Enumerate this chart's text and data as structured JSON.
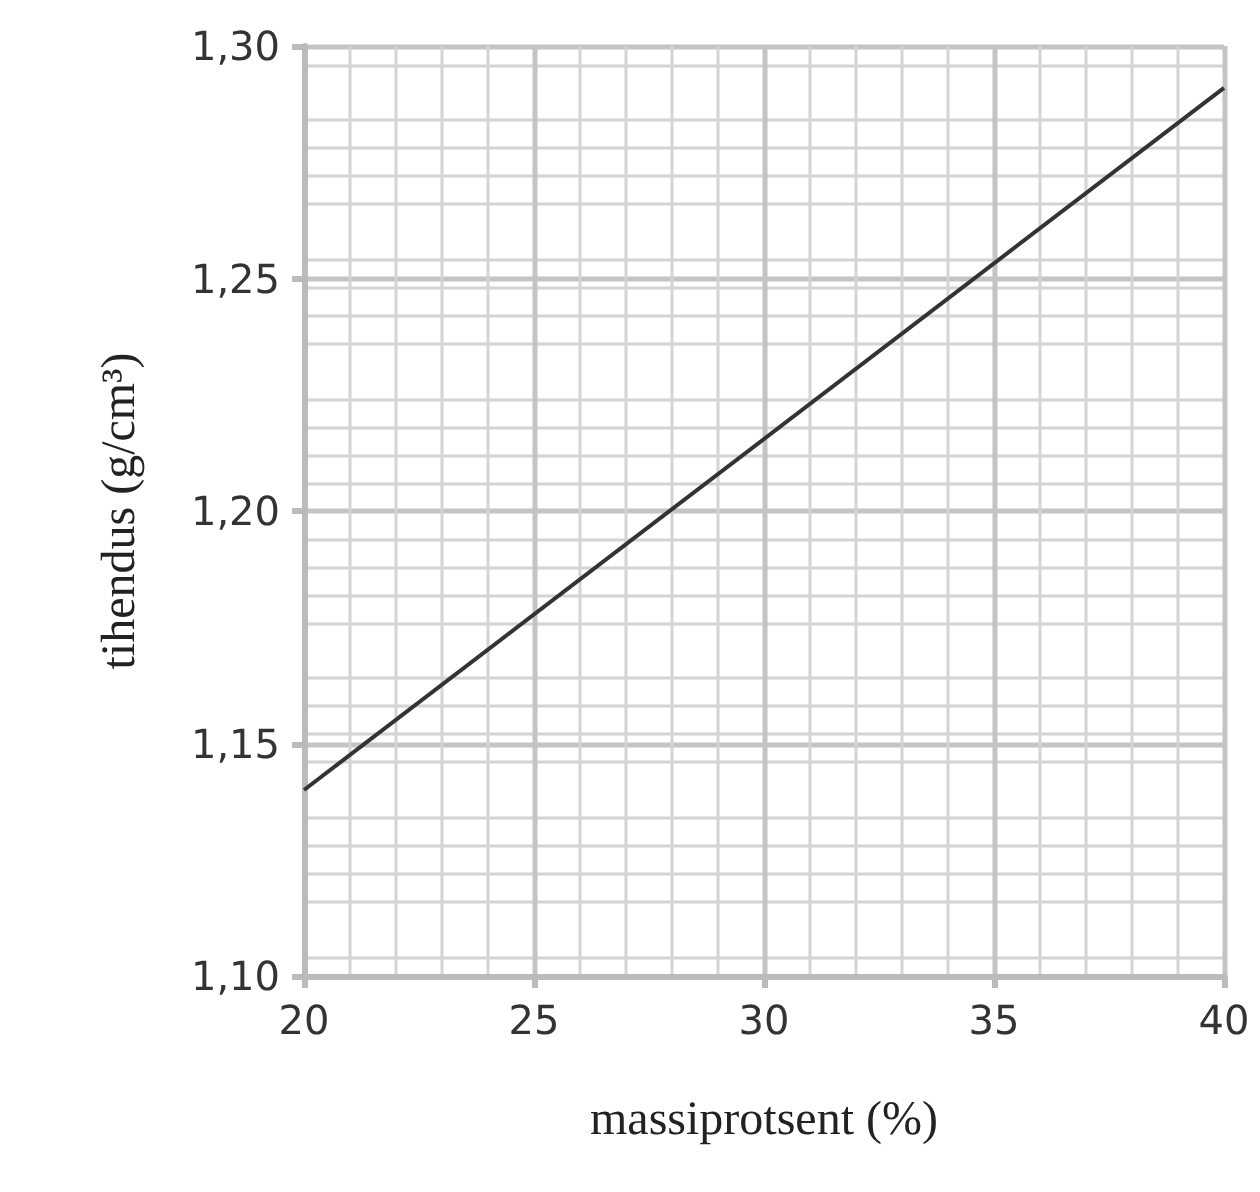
{
  "chart_data": {
    "type": "line",
    "xlabel": "massiprotsent (%)",
    "ylabel": "tihendus (g/cm³)",
    "x": [
      20,
      40
    ],
    "series": [
      {
        "color": "#333333",
        "values": [
          1.14,
          1.291
        ]
      }
    ],
    "xlim": [
      20,
      40
    ],
    "xticks": [
      20,
      25,
      30,
      35,
      40
    ],
    "ylim": [
      1.1,
      1.3
    ],
    "yticks": [
      {
        "value": 1.1,
        "label": "1,10"
      },
      {
        "value": 1.15,
        "label": "1,15"
      },
      {
        "value": 1.2,
        "label": "1,20"
      },
      {
        "value": 1.25,
        "label": "1,25"
      },
      {
        "value": 1.3,
        "label": "1,30"
      }
    ],
    "grid": true,
    "marker": "none",
    "line_style": "solid"
  }
}
